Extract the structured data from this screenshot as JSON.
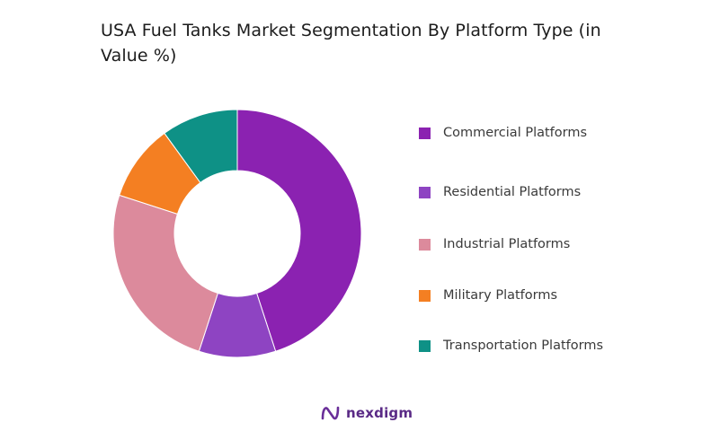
{
  "chart_data": {
    "type": "donut",
    "title": "USA Fuel Tanks Market Segmentation By Platform Type (in Value %)",
    "categories": [
      "Commercial Platforms",
      "Residential Platforms",
      "Industrial Platforms",
      "Military Platforms",
      "Transportation Platforms"
    ],
    "values": [
      45,
      10,
      25,
      10,
      10
    ],
    "colors": [
      "#8B22B1",
      "#8E44C2",
      "#DC8A9C",
      "#F47F22",
      "#0E9186"
    ],
    "legend_position": "right"
  },
  "brand": {
    "name": "nexdigm"
  }
}
